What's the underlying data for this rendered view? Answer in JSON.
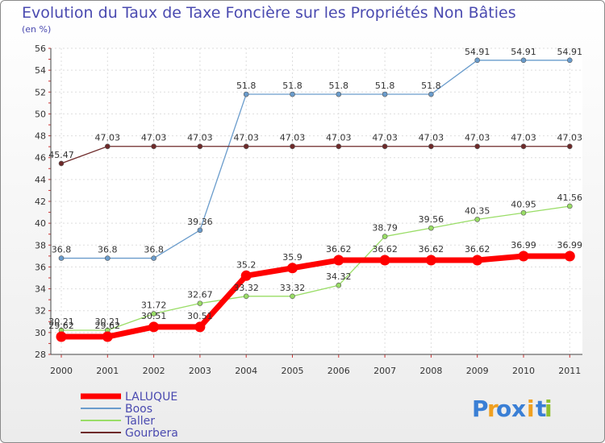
{
  "chart_data": {
    "type": "line",
    "title": "Evolution du Taux de Taxe Foncière sur les Propriétés Non Bâties",
    "ylabel": "(en %)",
    "xlabel": "",
    "ylim": [
      28,
      56
    ],
    "yticks": [
      28,
      30,
      32,
      34,
      36,
      38,
      40,
      42,
      44,
      46,
      48,
      50,
      52,
      54,
      56
    ],
    "categories": [
      "2000",
      "2001",
      "2002",
      "2003",
      "2004",
      "2005",
      "2006",
      "2007",
      "2008",
      "2009",
      "2010",
      "2011"
    ],
    "series": [
      {
        "name": "LALUQUE",
        "color": "#ff0000",
        "values": [
          29.62,
          29.62,
          30.51,
          30.51,
          35.2,
          35.9,
          36.62,
          36.62,
          36.62,
          36.62,
          36.99,
          36.99
        ],
        "labels": [
          "29.62",
          "29.62",
          "30.51",
          "30.51",
          "35.2",
          "35.9",
          "36.62",
          "36.62",
          "36.62",
          "36.62",
          "36.99",
          "36.99"
        ]
      },
      {
        "name": "Boos",
        "color": "#6a9ccc",
        "values": [
          36.8,
          36.8,
          36.8,
          39.36,
          51.8,
          51.8,
          51.8,
          51.8,
          51.8,
          54.91,
          54.91,
          54.91
        ],
        "labels": [
          "36.8",
          "36.8",
          "36.8",
          "39.36",
          "51.8",
          "51.8",
          "51.8",
          "51.8",
          "51.8",
          "54.91",
          "54.91",
          "54.91"
        ]
      },
      {
        "name": "Taller",
        "color": "#99dd66",
        "values": [
          30.21,
          30.21,
          31.72,
          32.67,
          33.32,
          33.32,
          34.32,
          38.79,
          39.56,
          40.35,
          40.95,
          41.56
        ],
        "labels": [
          "30.21",
          "30.21",
          "31.72",
          "32.67",
          "33.32",
          "33.32",
          "34.32",
          "38.79",
          "39.56",
          "40.35",
          "40.95",
          "41.56"
        ]
      },
      {
        "name": "Gourbera",
        "color": "#6e2a2a",
        "values": [
          45.47,
          47.03,
          47.03,
          47.03,
          47.03,
          47.03,
          47.03,
          47.03,
          47.03,
          47.03,
          47.03,
          47.03
        ],
        "labels": [
          "45.47",
          "47.03",
          "47.03",
          "47.03",
          "47.03",
          "47.03",
          "47.03",
          "47.03",
          "47.03",
          "47.03",
          "47.03",
          "47.03"
        ]
      }
    ]
  },
  "brand": {
    "letters": [
      "P",
      "r",
      "o",
      "x",
      "i",
      "t",
      "i"
    ],
    "colors": [
      "#3a7fd5",
      "#f0a020",
      "#3a7fd5",
      "#3a7fd5",
      "#f0a020",
      "#3a7fd5",
      "#90c030"
    ]
  }
}
